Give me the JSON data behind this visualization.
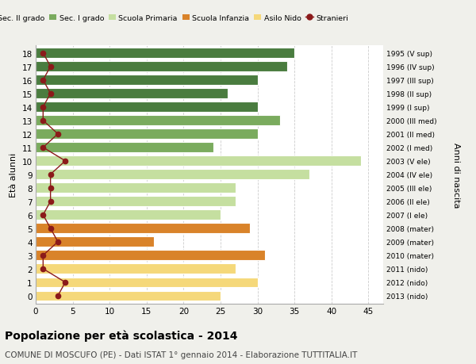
{
  "ages": [
    18,
    17,
    16,
    15,
    14,
    13,
    12,
    11,
    10,
    9,
    8,
    7,
    6,
    5,
    4,
    3,
    2,
    1,
    0
  ],
  "right_labels": [
    "1995 (V sup)",
    "1996 (IV sup)",
    "1997 (III sup)",
    "1998 (II sup)",
    "1999 (I sup)",
    "2000 (III med)",
    "2001 (II med)",
    "2002 (I med)",
    "2003 (V ele)",
    "2004 (IV ele)",
    "2005 (III ele)",
    "2006 (II ele)",
    "2007 (I ele)",
    "2008 (mater)",
    "2009 (mater)",
    "2010 (mater)",
    "2011 (nido)",
    "2012 (nido)",
    "2013 (nido)"
  ],
  "bar_values": [
    35,
    34,
    30,
    26,
    30,
    33,
    30,
    24,
    44,
    37,
    27,
    27,
    25,
    29,
    16,
    31,
    27,
    30,
    25
  ],
  "bar_colors": [
    "#4a7c3f",
    "#4a7c3f",
    "#4a7c3f",
    "#4a7c3f",
    "#4a7c3f",
    "#7aab5e",
    "#7aab5e",
    "#7aab5e",
    "#c5dfa0",
    "#c5dfa0",
    "#c5dfa0",
    "#c5dfa0",
    "#c5dfa0",
    "#d9832a",
    "#d9832a",
    "#d9832a",
    "#f5d87a",
    "#f5d87a",
    "#f5d87a"
  ],
  "stranieri_values": [
    1,
    2,
    1,
    2,
    1,
    1,
    3,
    1,
    4,
    2,
    2,
    2,
    1,
    2,
    3,
    1,
    1,
    4,
    3
  ],
  "legend_labels": [
    "Sec. II grado",
    "Sec. I grado",
    "Scuola Primaria",
    "Scuola Infanzia",
    "Asilo Nido",
    "Stranieri"
  ],
  "legend_colors": [
    "#4a7c3f",
    "#7aab5e",
    "#c5dfa0",
    "#d9832a",
    "#f5d87a",
    "#8b1a1a"
  ],
  "stranieri_color": "#8b1a1a",
  "title": "Popolazione per età scolastica - 2014",
  "subtitle": "COMUNE DI MOSCUFO (PE) - Dati ISTAT 1° gennaio 2014 - Elaborazione TUTTITALIA.IT",
  "ylabel": "Età alunni",
  "right_ylabel": "Anni di nascita",
  "xlim": [
    0,
    47
  ],
  "xticks": [
    0,
    5,
    10,
    15,
    20,
    25,
    30,
    35,
    40,
    45
  ],
  "plot_bg_color": "#ffffff",
  "fig_bg_color": "#f0f0eb",
  "bar_height": 0.75
}
